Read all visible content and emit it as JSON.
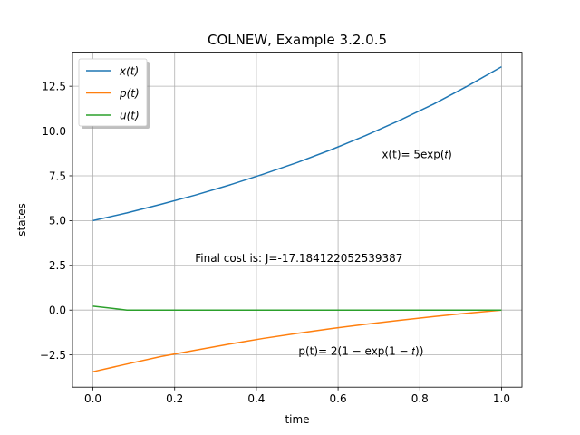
{
  "chart_data": {
    "type": "line",
    "title": "COLNEW, Example 3.2.0.5",
    "xlabel": "time",
    "ylabel": "states",
    "xlim": [
      -0.05,
      1.05
    ],
    "ylim": [
      -4.3,
      14.4
    ],
    "xticks": [
      0.0,
      0.2,
      0.4,
      0.6,
      0.8,
      1.0
    ],
    "xtick_labels": [
      "0.0",
      "0.2",
      "0.4",
      "0.6",
      "0.8",
      "1.0"
    ],
    "yticks": [
      -2.5,
      0.0,
      2.5,
      5.0,
      7.5,
      10.0,
      12.5
    ],
    "ytick_labels": [
      "−2.5",
      "0.0",
      "2.5",
      "5.0",
      "7.5",
      "10.0",
      "12.5"
    ],
    "grid": true,
    "legend_position": "top-left",
    "x": [
      0.0,
      0.0833,
      0.1667,
      0.25,
      0.3333,
      0.4167,
      0.5,
      0.5833,
      0.6667,
      0.75,
      0.8333,
      0.9167,
      1.0
    ],
    "series": [
      {
        "name": "x(t)",
        "color": "#1f77b4",
        "values": [
          5.0,
          5.43,
          5.91,
          6.42,
          6.98,
          7.59,
          8.24,
          8.96,
          9.74,
          10.59,
          11.5,
          12.51,
          13.59
        ]
      },
      {
        "name": "p(t)",
        "color": "#ff7f0e",
        "values": [
          -3.44,
          -3.01,
          -2.59,
          -2.24,
          -1.9,
          -1.58,
          -1.3,
          -1.03,
          -0.79,
          -0.57,
          -0.36,
          -0.17,
          0.0
        ]
      },
      {
        "name": "u(t)",
        "color": "#2ca02c",
        "values": [
          0.22,
          0.0,
          0.0,
          0.0,
          0.0,
          0.0,
          0.0,
          0.0,
          0.0,
          0.0,
          0.0,
          0.0,
          0.0
        ]
      }
    ],
    "annotations": [
      {
        "id": "x-formula",
        "text": "x(t)= 5exp(𝑡)",
        "x": 0.707,
        "y": 8.7
      },
      {
        "id": "final-cost",
        "text": "Final cost is: J=-17.184122052539387",
        "x": 0.25,
        "y": 2.9
      },
      {
        "id": "p-formula",
        "text": "p(t)= 2(1 − exp(1 − 𝑡))",
        "x": 0.503,
        "y": -2.28
      }
    ]
  }
}
